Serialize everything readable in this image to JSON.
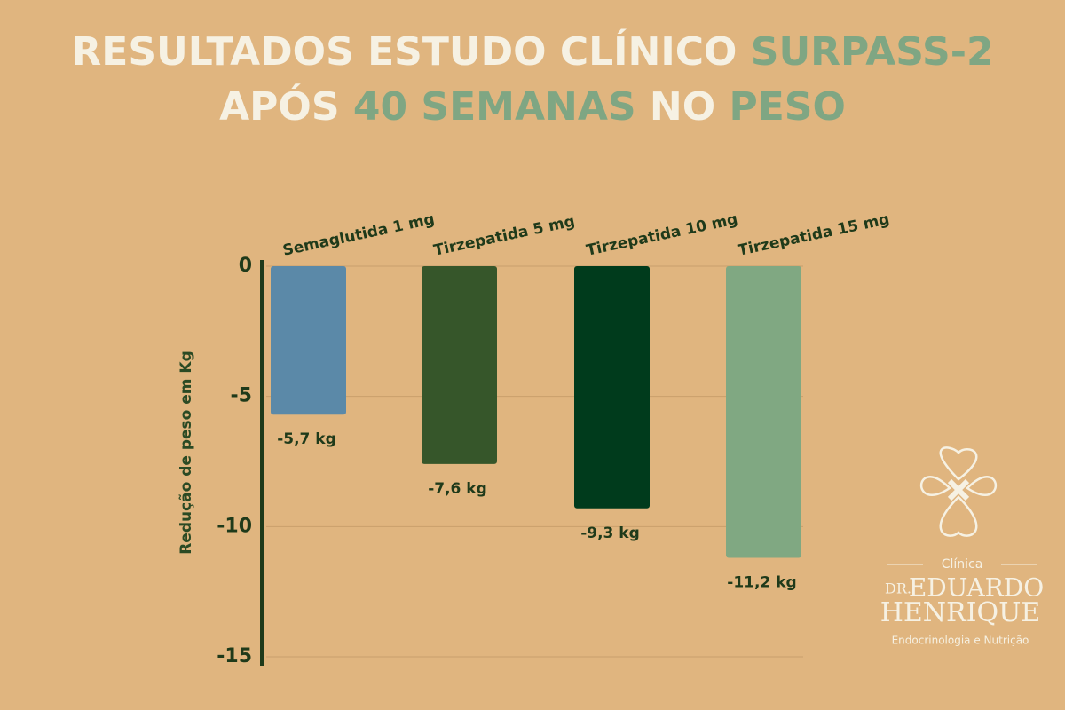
{
  "chart_data": {
    "type": "bar",
    "title": [
      {
        "text": "RESULTADOS ESTUDO CLÍNICO",
        "color": "#f6f1e3"
      },
      {
        "text": "SURPASS-2",
        "color": "#7fa683"
      },
      {
        "text": "APÓS",
        "color": "#f6f1e3"
      },
      {
        "text": "40",
        "color": "#7fa683"
      },
      {
        "text": "SEMANAS",
        "color": "#7fa683"
      },
      {
        "text": "NO",
        "color": "#f6f1e3"
      },
      {
        "text": "PESO",
        "color": "#7fa683"
      }
    ],
    "y_label": "Redução de peso em Kg",
    "categories": [
      "Semaglutida 1 mg",
      "Tirzepatida 5 mg",
      "Tirzepatida 10 mg",
      "Tirzepatida 15 mg"
    ],
    "values": [
      -5.7,
      -7.6,
      -9.3,
      -11.2
    ],
    "value_labels": [
      "-5,7 kg",
      "-7,6 kg",
      "-9,3 kg",
      "-11,2 kg"
    ],
    "colors": [
      "#5b89a8",
      "#36562a",
      "#003b1c",
      "#80a882"
    ],
    "ylim": [
      -15,
      0
    ],
    "yticks": [
      0,
      -5,
      -10,
      -15
    ],
    "grid": true
  },
  "logo": {
    "line1": "Clínica",
    "prefix": "DR.",
    "name1": "EDUARDO",
    "name2": "HENRIQUE",
    "tagline": "Endocrinologia e Nutrição"
  }
}
